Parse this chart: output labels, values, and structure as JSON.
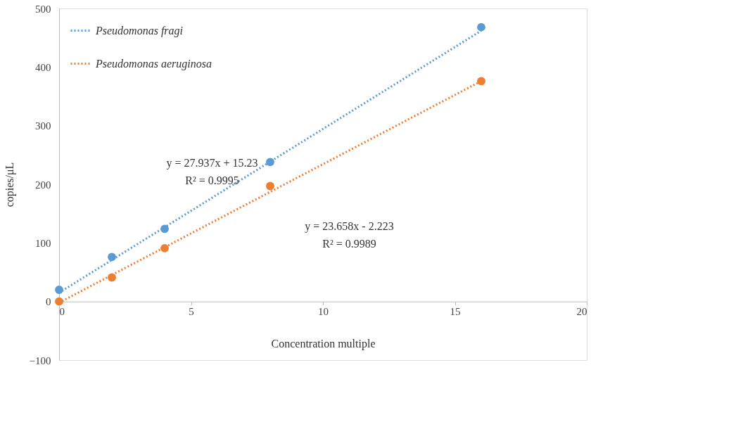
{
  "chart_data": {
    "type": "scatter",
    "xlabel": "Concentration multiple",
    "ylabel": "copies/μL",
    "xlim": [
      0,
      20
    ],
    "ylim": [
      -100,
      500
    ],
    "xticks": [
      0,
      5,
      10,
      15,
      20
    ],
    "yticks": [
      -100,
      0,
      100,
      200,
      300,
      400,
      500
    ],
    "grid": false,
    "legend": "top left",
    "series": [
      {
        "color": "#5b9bd5",
        "marker": "circle",
        "x": [
          0,
          2,
          4,
          8,
          16
        ],
        "values": [
          20,
          76,
          124,
          238,
          468
        ]
      },
      {
        "color": "#ed7d31",
        "marker": "circle",
        "x": [
          0,
          2,
          4,
          8,
          16
        ],
        "values": [
          0,
          41,
          91,
          197,
          376
        ]
      },
      {
        "type": "line",
        "name": "Pseudomonas fragi",
        "marker": "none",
        "line_style": "dotted",
        "color": "#5b9bd5",
        "x": [
          0,
          16
        ],
        "values": [
          15,
          462
        ]
      },
      {
        "type": "line",
        "name": "Pseudomonas aeruginosa",
        "marker": "none",
        "line_style": "dotted",
        "color": "#ed7d31",
        "x": [
          0,
          16
        ],
        "values": [
          -2,
          376
        ]
      }
    ],
    "annotations": [
      "y = 27.937x + 15.23",
      "R² = 0.9995",
      "y = 23.658x - 2.223",
      "R² = 0.9989"
    ]
  }
}
